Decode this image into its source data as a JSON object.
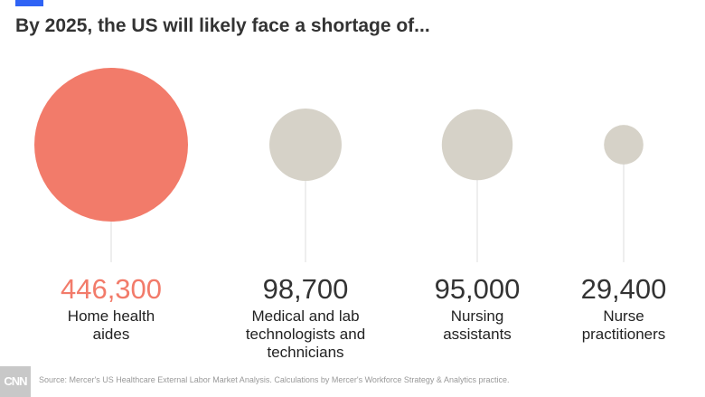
{
  "chart_data": {
    "type": "bubble",
    "title": "By 2025, the US will likely face a shortage of...",
    "categories": [
      "Home health aides",
      "Medical and lab technologists and technicians",
      "Nursing assistants",
      "Nurse practitioners"
    ],
    "values": [
      446300,
      98700,
      95000,
      29400
    ],
    "value_labels": [
      "446,300",
      "98,700",
      "95,000",
      "29,400"
    ],
    "label_lines": [
      [
        "Home health",
        "aides"
      ],
      [
        "Medical and lab",
        "technologists and",
        "technicians"
      ],
      [
        "Nursing",
        "assistants"
      ],
      [
        "Nurse",
        "practitioners"
      ]
    ],
    "colors": [
      "#f27b6a",
      "#d6d2c8",
      "#d6d2c8",
      "#d6d2c8"
    ],
    "value_colors": [
      "#f27b6a",
      "#333333",
      "#333333",
      "#333333"
    ]
  },
  "source": "Source: Mercer's US Healthcare External Labor Market Analysis. Calculations by Mercer's Workforce Strategy & Analytics practice.",
  "logo": "CNN",
  "accent_color": "#2f63f5"
}
